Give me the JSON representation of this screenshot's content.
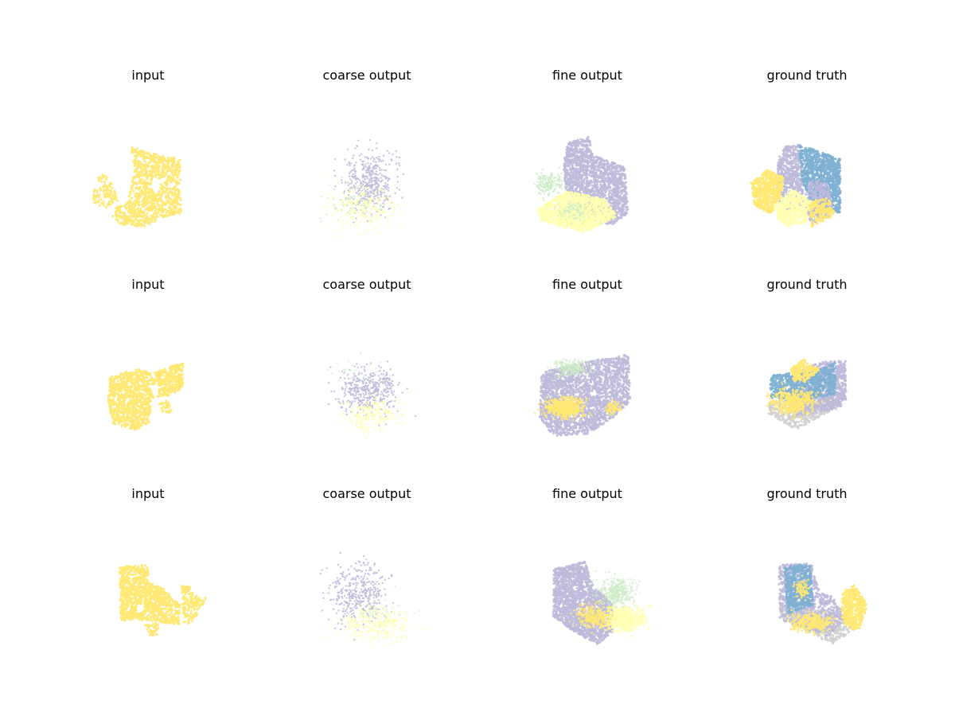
{
  "figure": {
    "rows": [
      {
        "titles": [
          "input",
          "coarse output",
          "fine output",
          "ground truth"
        ]
      },
      {
        "titles": [
          "input",
          "coarse output",
          "fine output",
          "ground truth"
        ]
      },
      {
        "titles": [
          "input",
          "coarse output",
          "fine output",
          "ground truth"
        ]
      }
    ]
  },
  "colors": {
    "yellow": "#ffe873",
    "light_yellow": "#ffffb3",
    "lavender": "#bebada",
    "blue": "#80b1d3",
    "light_green": "#ccebc5",
    "gray": "#d0d0d0"
  },
  "chart_data": {
    "type": "scatter",
    "description_units": "3D point clouds (axes hidden)",
    "grid": false,
    "axes_visible": false,
    "panels": [
      {
        "row": 0,
        "col": 0,
        "title": "input",
        "classes": [
          "yellow"
        ]
      },
      {
        "row": 0,
        "col": 1,
        "title": "coarse output",
        "classes": [
          "lavender",
          "light_yellow"
        ]
      },
      {
        "row": 0,
        "col": 2,
        "title": "fine output",
        "classes": [
          "lavender",
          "light_yellow",
          "light_green"
        ]
      },
      {
        "row": 0,
        "col": 3,
        "title": "ground truth",
        "classes": [
          "lavender",
          "blue",
          "yellow",
          "light_yellow"
        ]
      },
      {
        "row": 1,
        "col": 0,
        "title": "input",
        "classes": [
          "yellow"
        ]
      },
      {
        "row": 1,
        "col": 1,
        "title": "coarse output",
        "classes": [
          "lavender",
          "light_yellow"
        ]
      },
      {
        "row": 1,
        "col": 2,
        "title": "fine output",
        "classes": [
          "lavender",
          "yellow",
          "light_green"
        ]
      },
      {
        "row": 1,
        "col": 3,
        "title": "ground truth",
        "classes": [
          "lavender",
          "blue",
          "yellow",
          "gray"
        ]
      },
      {
        "row": 2,
        "col": 0,
        "title": "input",
        "classes": [
          "yellow"
        ]
      },
      {
        "row": 2,
        "col": 1,
        "title": "coarse output",
        "classes": [
          "lavender",
          "light_yellow"
        ]
      },
      {
        "row": 2,
        "col": 2,
        "title": "fine output",
        "classes": [
          "lavender",
          "yellow",
          "light_green",
          "light_yellow"
        ]
      },
      {
        "row": 2,
        "col": 3,
        "title": "ground truth",
        "classes": [
          "lavender",
          "blue",
          "yellow",
          "gray"
        ]
      }
    ]
  }
}
